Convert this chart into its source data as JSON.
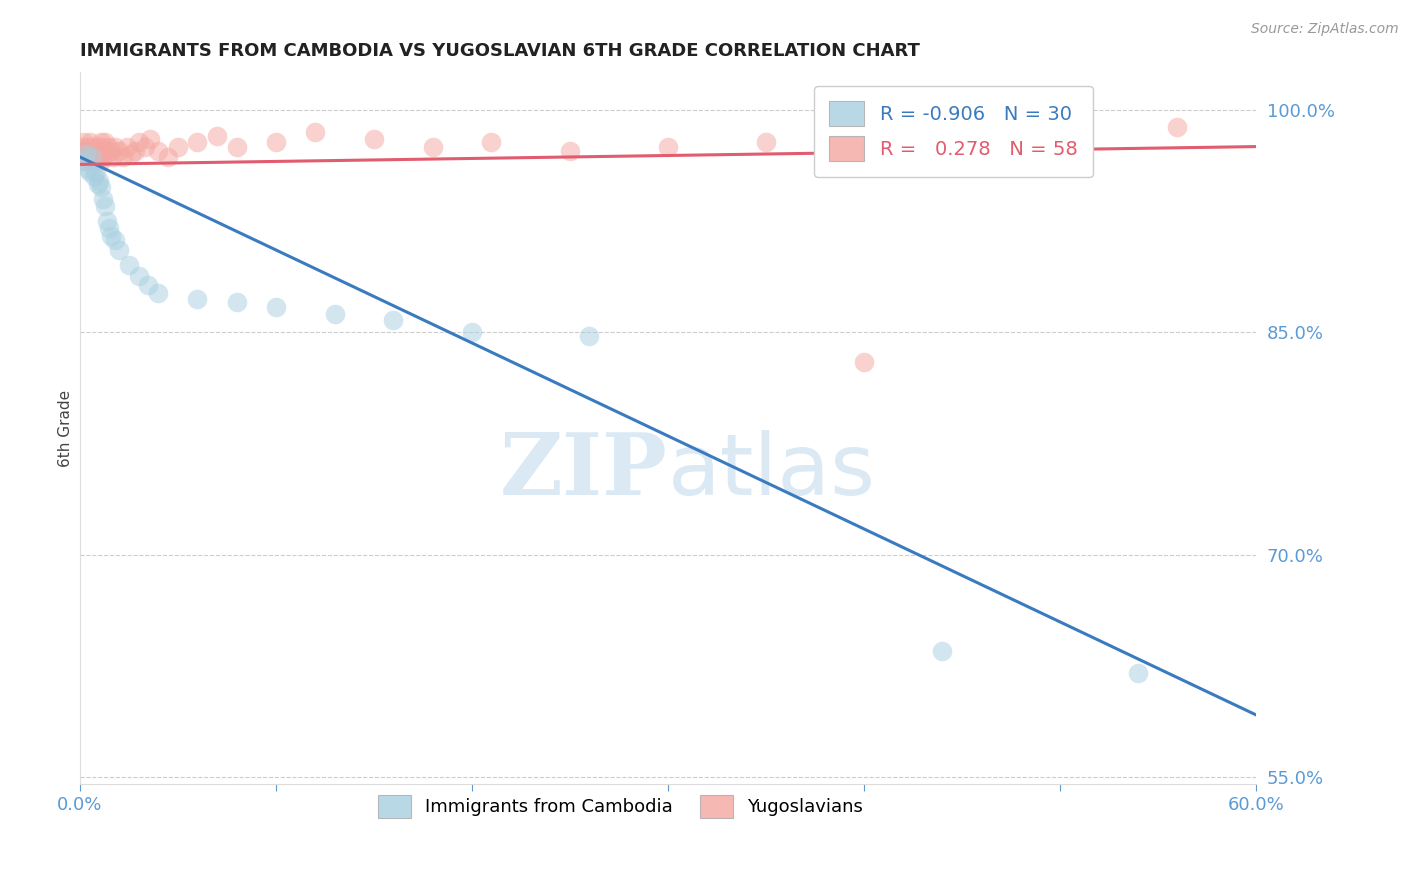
{
  "title": "IMMIGRANTS FROM CAMBODIA VS YUGOSLAVIAN 6TH GRADE CORRELATION CHART",
  "source_text": "Source: ZipAtlas.com",
  "ylabel": "6th Grade",
  "xlim": [
    0.0,
    0.6
  ],
  "ylim": [
    0.545,
    1.025
  ],
  "xticks": [
    0.0,
    0.1,
    0.2,
    0.3,
    0.4,
    0.5,
    0.6
  ],
  "xticklabels": [
    "0.0%",
    "",
    "",
    "",
    "",
    "",
    "60.0%"
  ],
  "yticks_right": [
    0.55,
    0.7,
    0.85,
    1.0
  ],
  "yticklabels_right": [
    "55.0%",
    "70.0%",
    "85.0%",
    "100.0%"
  ],
  "watermark_zip": "ZIP",
  "watermark_atlas": "atlas",
  "legend_blue_label": "Immigrants from Cambodia",
  "legend_pink_label": "Yugoslavians",
  "legend_R_blue": "-0.906",
  "legend_N_blue": "30",
  "legend_R_pink": "0.278",
  "legend_N_pink": "58",
  "blue_color": "#a8cfe0",
  "pink_color": "#f4a7a0",
  "blue_line_color": "#3a7bbf",
  "pink_line_color": "#e05c6e",
  "blue_scatter_x": [
    0.002,
    0.003,
    0.004,
    0.005,
    0.006,
    0.007,
    0.008,
    0.009,
    0.01,
    0.011,
    0.012,
    0.013,
    0.014,
    0.015,
    0.016,
    0.018,
    0.02,
    0.025,
    0.03,
    0.035,
    0.04,
    0.06,
    0.08,
    0.1,
    0.13,
    0.16,
    0.2,
    0.26,
    0.44,
    0.54
  ],
  "blue_scatter_y": [
    0.965,
    0.97,
    0.96,
    0.958,
    0.968,
    0.955,
    0.958,
    0.95,
    0.952,
    0.948,
    0.94,
    0.935,
    0.925,
    0.92,
    0.915,
    0.912,
    0.905,
    0.895,
    0.888,
    0.882,
    0.876,
    0.872,
    0.87,
    0.867,
    0.862,
    0.858,
    0.85,
    0.847,
    0.635,
    0.62
  ],
  "pink_scatter_x": [
    0.001,
    0.001,
    0.002,
    0.002,
    0.003,
    0.003,
    0.003,
    0.004,
    0.004,
    0.005,
    0.005,
    0.006,
    0.006,
    0.007,
    0.007,
    0.008,
    0.008,
    0.009,
    0.009,
    0.01,
    0.01,
    0.011,
    0.011,
    0.012,
    0.012,
    0.013,
    0.013,
    0.014,
    0.015,
    0.016,
    0.017,
    0.018,
    0.02,
    0.022,
    0.024,
    0.026,
    0.028,
    0.03,
    0.033,
    0.036,
    0.04,
    0.045,
    0.05,
    0.06,
    0.07,
    0.08,
    0.1,
    0.12,
    0.15,
    0.18,
    0.21,
    0.25,
    0.3,
    0.35,
    0.4,
    0.46,
    0.51,
    0.56
  ],
  "pink_scatter_y": [
    0.972,
    0.968,
    0.975,
    0.978,
    0.97,
    0.965,
    0.972,
    0.975,
    0.968,
    0.972,
    0.978,
    0.965,
    0.97,
    0.968,
    0.975,
    0.972,
    0.965,
    0.97,
    0.975,
    0.968,
    0.972,
    0.978,
    0.965,
    0.968,
    0.975,
    0.972,
    0.978,
    0.97,
    0.975,
    0.972,
    0.968,
    0.975,
    0.972,
    0.968,
    0.975,
    0.97,
    0.972,
    0.978,
    0.975,
    0.98,
    0.972,
    0.968,
    0.975,
    0.978,
    0.982,
    0.975,
    0.978,
    0.985,
    0.98,
    0.975,
    0.978,
    0.972,
    0.975,
    0.978,
    0.982,
    0.985,
    0.978,
    0.988
  ],
  "pink_outlier_x": [
    0.4
  ],
  "pink_outlier_y": [
    0.83
  ],
  "blue_trend_x": [
    0.0,
    0.6
  ],
  "blue_trend_y": [
    0.968,
    0.592
  ],
  "pink_trend_x": [
    0.0,
    0.6
  ],
  "pink_trend_y": [
    0.963,
    0.975
  ],
  "title_fontsize": 13,
  "axis_color": "#5b9bd5",
  "grid_color": "#cccccc",
  "grid_linestyle": "--"
}
